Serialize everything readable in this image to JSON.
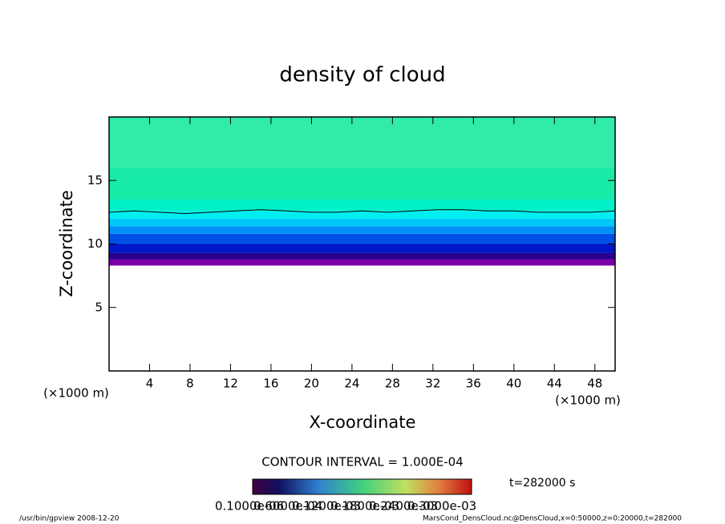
{
  "chart_data": {
    "type": "shaded-contour",
    "title": "density of cloud",
    "xlabel": "X-coordinate",
    "ylabel": "Z-coordinate",
    "x_unit": "(×1000 m)",
    "y_unit": "(×1000 m)",
    "xlim": [
      0,
      50
    ],
    "xticks": [
      4,
      8,
      12,
      16,
      20,
      24,
      28,
      32,
      36,
      40,
      44,
      48
    ],
    "ylim": [
      0,
      20
    ],
    "yticks": [
      5,
      10,
      15
    ],
    "shading": {
      "z": [
        8.3,
        8.8,
        9.3,
        10,
        10.8,
        11.4,
        12,
        12.6,
        13.5,
        16,
        20
      ],
      "colors": [
        "#7a00a8",
        "#2a0090",
        "#0018c8",
        "#0050e8",
        "#0090f4",
        "#00c8f8",
        "#00eef0",
        "#00f0c8",
        "#18eaa8",
        "#30eca8"
      ]
    },
    "contour": {
      "x": [
        0,
        2.5,
        5,
        7.5,
        10,
        12.5,
        15,
        17.5,
        20,
        22.5,
        25,
        27.5,
        30,
        32.5,
        35,
        37.5,
        40,
        42.5,
        45,
        47.5,
        50
      ],
      "z": [
        12.5,
        12.6,
        12.5,
        12.4,
        12.5,
        12.6,
        12.7,
        12.6,
        12.5,
        12.5,
        12.6,
        12.5,
        12.6,
        12.7,
        12.7,
        12.6,
        12.6,
        12.5,
        12.5,
        12.5,
        12.6
      ]
    },
    "contour_interval": "CONTOUR INTERVAL = 1.000E-04",
    "time": "t=282000 s",
    "colorbar_labels": [
      "0.1000e-06",
      "0.6000e-04",
      "0.1200e-03",
      "0.1800e-03",
      "0.2400e-03",
      "0.3000e-03"
    ],
    "footer_left": "/usr/bin/gpview   2008-12-20",
    "footer_right": "MarsCond_DensCloud.nc@DensCloud,x=0:50000,z=0:20000,t=282000"
  }
}
